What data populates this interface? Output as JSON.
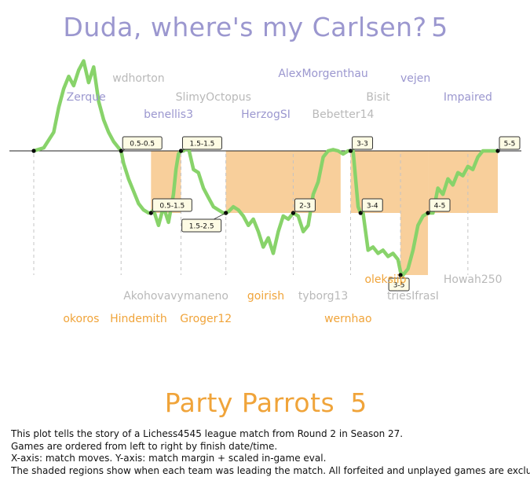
{
  "colors": {
    "top_team": "#9b97cf",
    "bottom_team": "#f0a43a",
    "gray_name": "#b9b9b9",
    "line": "#88d36a",
    "shade": "#f8cf9b",
    "label_bg": "#fdfbe4"
  },
  "chart_data": {
    "type": "line",
    "title_top": {
      "team": "Duda, where's my Carlsen?",
      "score": "5"
    },
    "title_bottom": {
      "team": "Party Parrots",
      "score": "5"
    },
    "xlabel": "match moves",
    "ylabel": "match margin + scaled in-game eval",
    "ylim": [
      -3.2,
      2.4
    ],
    "xlim": [
      0,
      100
    ],
    "game_boundaries": [
      5,
      22.5,
      34.5,
      43.5,
      57,
      68.5,
      78.5,
      92
    ],
    "margin_markers": [
      {
        "x": 5,
        "y": 0,
        "label": ""
      },
      {
        "x": 22.5,
        "y": 0,
        "label": "0.5-0.5"
      },
      {
        "x": 28.5,
        "y": -1,
        "label": "0.5-1.5"
      },
      {
        "x": 34.5,
        "y": 0,
        "label": "1.5-1.5"
      },
      {
        "x": 43.5,
        "y": -1,
        "label": "1.5-2.5"
      },
      {
        "x": 57,
        "y": -1,
        "label": "2-3"
      },
      {
        "x": 68.5,
        "y": 0,
        "label": "3-3"
      },
      {
        "x": 70.5,
        "y": -1,
        "label": "3-4"
      },
      {
        "x": 78.5,
        "y": -2,
        "label": "3-5"
      },
      {
        "x": 84,
        "y": -1,
        "label": "4-5"
      },
      {
        "x": 98,
        "y": 0,
        "label": "5-5"
      }
    ],
    "shaded_regions": [
      {
        "x0": 28.5,
        "x1": 34.5,
        "y": -1
      },
      {
        "x0": 43.5,
        "x1": 66.5,
        "y": -1
      },
      {
        "x0": 68.5,
        "x1": 78.5,
        "y": -1
      },
      {
        "x0": 78.5,
        "x1": 84,
        "y": -2
      },
      {
        "x0": 84,
        "x1": 98,
        "y": -1
      }
    ],
    "series": [
      {
        "x": [
          5,
          7,
          9,
          10,
          11,
          12,
          13,
          14,
          15,
          16,
          17,
          18,
          19,
          20,
          21,
          22,
          22.5,
          23,
          24,
          25,
          26,
          27,
          28,
          28.5,
          29,
          30,
          31,
          32,
          33,
          33.5,
          34,
          34.5,
          35,
          36,
          37,
          38,
          39,
          40,
          41,
          42,
          43,
          43.5,
          44,
          45,
          46,
          47,
          48,
          49,
          50,
          51,
          52,
          53,
          54,
          55,
          56,
          57,
          58,
          59,
          60,
          61,
          62,
          63,
          64,
          65,
          66,
          67,
          68,
          68.5,
          69,
          70,
          70.5,
          71,
          72,
          73,
          74,
          75,
          76,
          77,
          78,
          78.5,
          79,
          80,
          81,
          82,
          83,
          84,
          85,
          86,
          87,
          88,
          89,
          90,
          91,
          92,
          93,
          94,
          95,
          96,
          97,
          98
        ],
        "y": [
          0,
          0.05,
          0.3,
          0.7,
          1.0,
          1.2,
          1.05,
          1.3,
          1.45,
          1.1,
          1.35,
          0.8,
          0.5,
          0.3,
          0.15,
          0.05,
          0,
          -0.2,
          -0.45,
          -0.65,
          -0.85,
          -0.95,
          -1.0,
          -1.0,
          -0.95,
          -1.2,
          -0.9,
          -1.15,
          -0.7,
          -0.3,
          -0.05,
          0,
          0,
          0.05,
          -0.3,
          -0.35,
          -0.6,
          -0.75,
          -0.9,
          -0.95,
          -1.0,
          -1.0,
          -0.98,
          -0.9,
          -0.95,
          -1.05,
          -1.2,
          -1.1,
          -1.3,
          -1.55,
          -1.4,
          -1.65,
          -1.3,
          -1.05,
          -1.1,
          -1.0,
          -1.05,
          -1.3,
          -1.2,
          -0.7,
          -0.5,
          -0.1,
          0,
          0.02,
          0,
          -0.05,
          0,
          0,
          0,
          -0.9,
          -1.0,
          -1.0,
          -1.6,
          -1.55,
          -1.65,
          -1.6,
          -1.7,
          -1.65,
          -1.75,
          -1.95,
          -2.0,
          -1.9,
          -1.6,
          -1.2,
          -1.05,
          -1.0,
          -1.0,
          -0.6,
          -0.7,
          -0.45,
          -0.55,
          -0.35,
          -0.4,
          -0.25,
          -0.3,
          -0.1,
          0,
          0,
          0,
          0
        ]
      }
    ],
    "top_players": [
      {
        "name": "Zerque",
        "color": "purple",
        "x": 15.5,
        "row": 3
      },
      {
        "name": "wdhorton",
        "color": "gray",
        "x": 26,
        "row": 1
      },
      {
        "name": "benellis3",
        "color": "purple",
        "x": 32,
        "row": 4
      },
      {
        "name": "SlimyOctopus",
        "color": "gray",
        "x": 41,
        "row": 3
      },
      {
        "name": "HerzogSI",
        "color": "purple",
        "x": 51.5,
        "row": 4
      },
      {
        "name": "AlexMorgenthau",
        "color": "purple",
        "x": 63,
        "row": 0
      },
      {
        "name": "Bebetter14",
        "color": "gray",
        "x": 67,
        "row": 4
      },
      {
        "name": "Bisit",
        "color": "gray",
        "x": 74,
        "row": 3
      },
      {
        "name": "vejen",
        "color": "purple",
        "x": 81.5,
        "row": 1
      },
      {
        "name": "Impaired",
        "color": "purple",
        "x": 92,
        "row": 3
      }
    ],
    "bottom_players": [
      {
        "name": "oleksiip",
        "color": "orange",
        "x": 75.5,
        "row": 0
      },
      {
        "name": "Howah250",
        "color": "gray",
        "x": 93,
        "row": 0
      },
      {
        "name": "Akohovavymaneno",
        "color": "gray",
        "x": 33.5,
        "row": 1
      },
      {
        "name": "goirish",
        "color": "orange",
        "x": 51.5,
        "row": 1
      },
      {
        "name": "tyborg13",
        "color": "gray",
        "x": 63,
        "row": 1
      },
      {
        "name": "triesIfrasI",
        "color": "gray",
        "x": 81,
        "row": 1
      },
      {
        "name": "okoros",
        "color": "orange",
        "x": 14.5,
        "row": 2
      },
      {
        "name": "Hindemith",
        "color": "orange",
        "x": 26,
        "row": 2
      },
      {
        "name": "Groger12",
        "color": "orange",
        "x": 39.5,
        "row": 2
      },
      {
        "name": "wernhao",
        "color": "orange",
        "x": 68,
        "row": 2
      }
    ]
  },
  "caption": {
    "line1": "This plot tells the story of a Lichess4545 league match from Round 2 in Season 27.",
    "line2": "Games are ordered from left to right by finish date/time.",
    "line3": "X-axis: match moves. Y-axis: match margin + scaled in-game eval.",
    "line4": "The shaded regions show when each team was leading the match. All forfeited and unplayed games are excluded."
  }
}
